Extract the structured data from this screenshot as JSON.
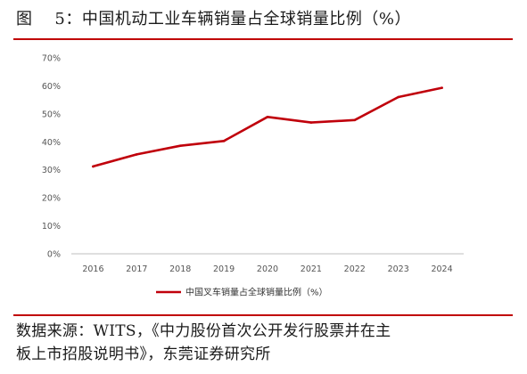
{
  "figure": {
    "label": "图",
    "number": "5",
    "title": "中国机动工业车辆销量占全球销量比例（%）"
  },
  "source": {
    "line1": "数据来源：WITS，《中力股份首次公开发行股票并在主",
    "line2": "板上市招股说明书》，东莞证券研究所"
  },
  "colors": {
    "accent": "#c00000",
    "line": "#c0000b",
    "axis": "#bfbfbf"
  },
  "chart_data": {
    "type": "line",
    "title": "",
    "xlabel": "",
    "ylabel": "",
    "categories": [
      "2016",
      "2017",
      "2018",
      "2019",
      "2020",
      "2021",
      "2022",
      "2023",
      "2024"
    ],
    "series": [
      {
        "name": "中国叉车销量占全球销量比例（%）",
        "values": [
          31.2,
          35.5,
          38.6,
          40.3,
          48.9,
          46.9,
          47.8,
          56.0,
          59.3
        ]
      }
    ],
    "ylim": [
      0,
      70
    ],
    "yticks": [
      "0%",
      "10%",
      "20%",
      "30%",
      "40%",
      "50%",
      "60%",
      "70%"
    ],
    "grid": false,
    "legend": "bottom"
  }
}
